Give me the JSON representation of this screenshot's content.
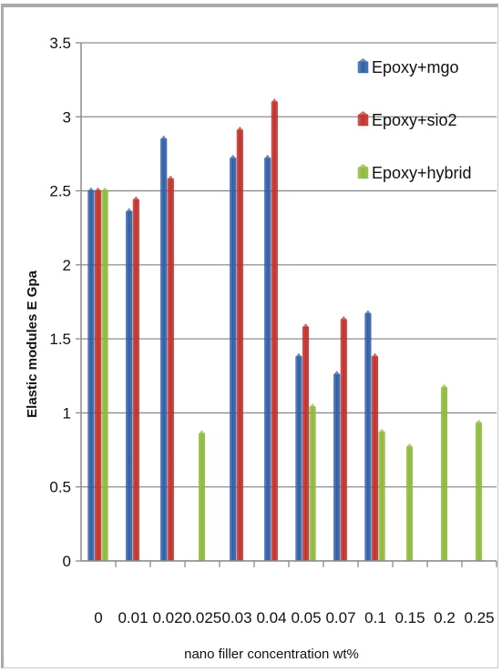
{
  "chart_data": {
    "type": "bar",
    "title": "",
    "xlabel": "nano filler concentration wt%",
    "ylabel": "Elastic modules E   Gpa",
    "ylim": [
      0,
      3.5
    ],
    "yticks": [
      "0",
      "0.5",
      "1",
      "1.5",
      "2",
      "2.5",
      "3",
      "3.5"
    ],
    "grid": true,
    "legend": "top-right",
    "categories": [
      "0",
      "0.01",
      "0.02",
      "0.025",
      "0.03",
      "0.04",
      "0.05",
      "0.07",
      "0.1",
      "0.15",
      "0.2",
      "0.25"
    ],
    "series": [
      {
        "name": "Epoxy+mgo",
        "color": "#2e5fa8",
        "values": [
          2.5,
          2.36,
          2.85,
          null,
          2.72,
          2.72,
          1.38,
          1.26,
          1.67,
          null,
          null,
          null
        ]
      },
      {
        "name": "Epoxy+sio2",
        "color": "#c0302b",
        "values": [
          2.5,
          2.44,
          2.58,
          null,
          2.91,
          3.1,
          1.58,
          1.63,
          1.38,
          null,
          null,
          null
        ]
      },
      {
        "name": "Epoxy+hybrid",
        "color": "#8db93b",
        "values": [
          2.5,
          null,
          null,
          0.86,
          null,
          null,
          1.04,
          null,
          0.87,
          0.77,
          1.17,
          0.93
        ]
      }
    ]
  }
}
